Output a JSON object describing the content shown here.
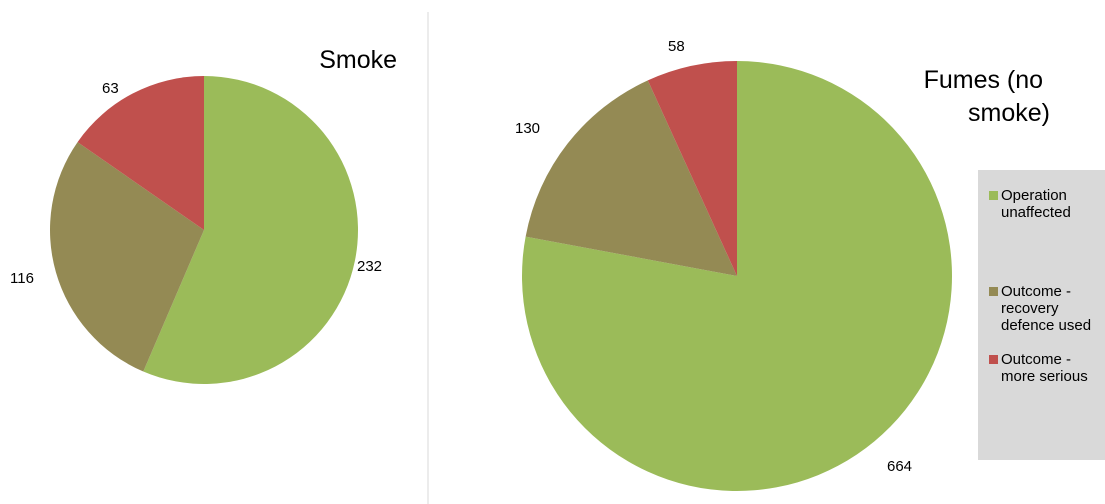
{
  "chart_data": [
    {
      "type": "pie",
      "title": "Smoke",
      "categories": [
        "Operation unaffected",
        "Outcome - recovery defence used",
        "Outcome - more serious"
      ],
      "values": [
        232,
        116,
        63
      ],
      "colors": [
        "#9bbb59",
        "#948a54",
        "#c0504d"
      ],
      "data_labels": [
        "232",
        "116",
        "63"
      ]
    },
    {
      "type": "pie",
      "title": "Fumes (no smoke)",
      "title_lines": [
        "Fumes (no",
        "smoke)"
      ],
      "categories": [
        "Operation unaffected",
        "Outcome - recovery defence used",
        "Outcome - more serious"
      ],
      "values": [
        664,
        130,
        58
      ],
      "colors": [
        "#9bbb59",
        "#948a54",
        "#c0504d"
      ],
      "data_labels": [
        "664",
        "130",
        "58"
      ],
      "legend": {
        "placement": "right",
        "background": "#d9d9d9",
        "entries": [
          {
            "lines": [
              "Operation",
              "unaffected"
            ],
            "color": "#9bbb59"
          },
          {
            "lines": [
              "Outcome -",
              "recovery",
              "defence used"
            ],
            "color": "#948a54"
          },
          {
            "lines": [
              "Outcome -",
              "more serious"
            ],
            "color": "#c0504d"
          }
        ]
      }
    }
  ]
}
